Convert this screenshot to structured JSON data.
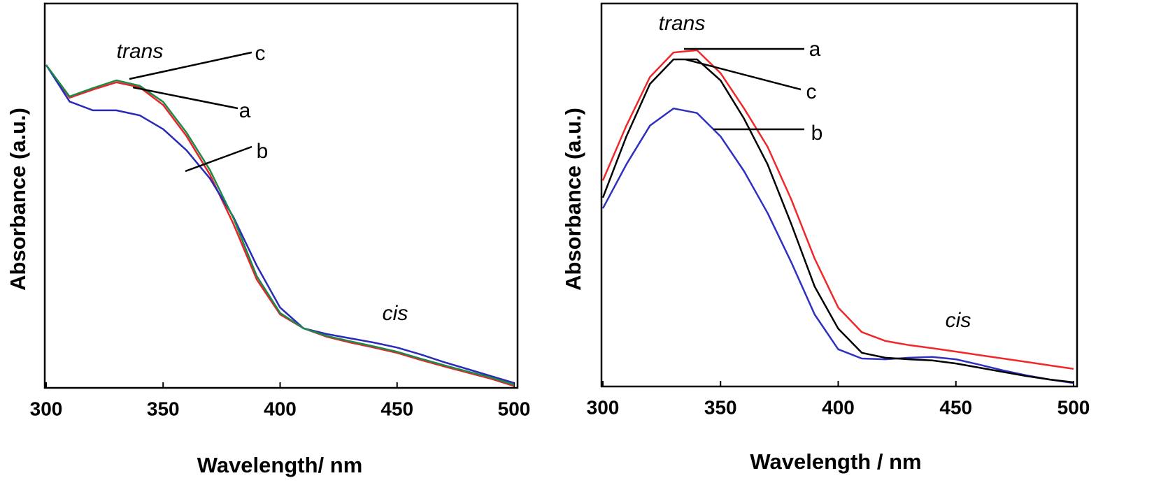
{
  "chart_data": [
    {
      "type": "line",
      "x_label": "Wavelength/ nm",
      "y_label": "Absorbance (a.u.)",
      "annotations": [
        "trans",
        "cis"
      ],
      "x": [
        300,
        310,
        320,
        330,
        340,
        350,
        360,
        370,
        380,
        390,
        400,
        410,
        420,
        430,
        440,
        450,
        460,
        470,
        480,
        490,
        500
      ],
      "xlim": [
        300,
        500
      ],
      "xticks": [
        300,
        350,
        400,
        450,
        500
      ],
      "ylim": [
        0,
        1
      ],
      "series": [
        {
          "name": "a",
          "color": "#e8242a",
          "values": [
            0.84,
            0.755,
            0.776,
            0.795,
            0.782,
            0.736,
            0.655,
            0.555,
            0.427,
            0.282,
            0.191,
            0.155,
            0.133,
            0.118,
            0.105,
            0.091,
            0.073,
            0.056,
            0.04,
            0.024,
            0.005
          ]
        },
        {
          "name": "b",
          "color": "#2a2ab8",
          "values": [
            0.84,
            0.745,
            0.722,
            0.722,
            0.709,
            0.673,
            0.618,
            0.545,
            0.445,
            0.318,
            0.209,
            0.155,
            0.14,
            0.129,
            0.118,
            0.105,
            0.087,
            0.067,
            0.049,
            0.031,
            0.013
          ]
        },
        {
          "name": "c",
          "color": "#1e8a4a",
          "values": [
            0.84,
            0.758,
            0.78,
            0.8,
            0.786,
            0.744,
            0.664,
            0.567,
            0.442,
            0.291,
            0.195,
            0.155,
            0.135,
            0.121,
            0.108,
            0.094,
            0.076,
            0.059,
            0.043,
            0.027,
            0.008
          ]
        }
      ]
    },
    {
      "type": "line",
      "x_label": "Wavelength / nm",
      "y_label": "Absorbance (a.u.)",
      "annotations": [
        "trans",
        "cis"
      ],
      "x": [
        300,
        310,
        320,
        330,
        340,
        350,
        360,
        370,
        380,
        390,
        400,
        410,
        420,
        430,
        440,
        450,
        460,
        470,
        480,
        490,
        500
      ],
      "xlim": [
        300,
        500
      ],
      "xticks": [
        300,
        350,
        400,
        450,
        500
      ],
      "ylim": [
        0,
        1
      ],
      "series": [
        {
          "name": "a",
          "color": "#f0282a",
          "values": [
            0.538,
            0.681,
            0.808,
            0.872,
            0.878,
            0.818,
            0.726,
            0.626,
            0.489,
            0.334,
            0.206,
            0.142,
            0.119,
            0.108,
            0.1,
            0.091,
            0.082,
            0.073,
            0.064,
            0.055,
            0.046
          ]
        },
        {
          "name": "b",
          "color": "#3030c0",
          "values": [
            0.465,
            0.58,
            0.681,
            0.726,
            0.714,
            0.653,
            0.562,
            0.453,
            0.325,
            0.188,
            0.097,
            0.073,
            0.071,
            0.075,
            0.077,
            0.071,
            0.057,
            0.042,
            0.029,
            0.018,
            0.009
          ]
        },
        {
          "name": "c",
          "color": "#000000",
          "values": [
            0.493,
            0.653,
            0.79,
            0.854,
            0.854,
            0.799,
            0.699,
            0.58,
            0.425,
            0.261,
            0.151,
            0.088,
            0.075,
            0.071,
            0.068,
            0.06,
            0.049,
            0.038,
            0.027,
            0.018,
            0.011
          ]
        }
      ]
    }
  ]
}
